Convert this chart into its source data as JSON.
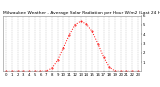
{
  "title": "Milwaukee Weather - Average Solar Radiation per Hour W/m2 (Last 24 Hours)",
  "hours": [
    0,
    1,
    2,
    3,
    4,
    5,
    6,
    7,
    8,
    9,
    10,
    11,
    12,
    13,
    14,
    15,
    16,
    17,
    18,
    19,
    20,
    21,
    22,
    23
  ],
  "values": [
    0,
    0,
    0,
    0,
    0,
    0,
    0,
    3,
    35,
    120,
    255,
    390,
    500,
    540,
    510,
    430,
    300,
    155,
    45,
    3,
    0,
    0,
    0,
    0
  ],
  "line_color": "#ff0000",
  "bg_color": "#ffffff",
  "plot_bg_color": "#ffffff",
  "grid_color": "#bbbbbb",
  "ylim": [
    0,
    600
  ],
  "yticks": [
    100,
    200,
    300,
    400,
    500,
    600
  ],
  "ytick_labels": [
    "1",
    "2",
    "3",
    "4",
    "5",
    "6"
  ],
  "title_fontsize": 3.2,
  "tick_fontsize": 2.8
}
